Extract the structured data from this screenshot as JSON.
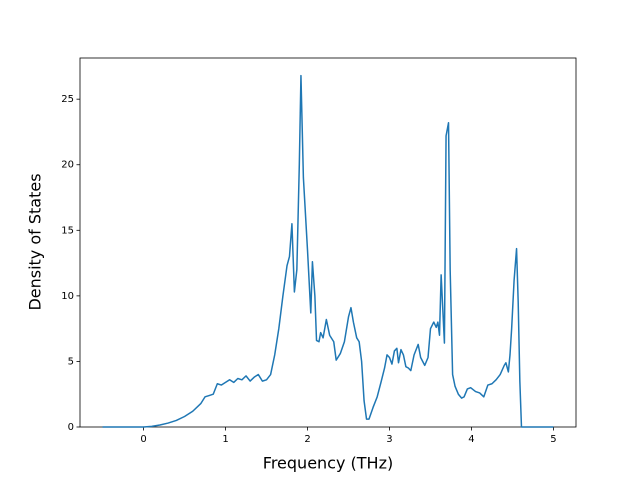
{
  "chart_data": {
    "type": "line",
    "xlabel": "Frequency (THz)",
    "ylabel": "Density of States",
    "xlim": [
      -0.775,
      5.275
    ],
    "ylim": [
      0,
      28.14
    ],
    "xticks": [
      0,
      1,
      2,
      3,
      4,
      5
    ],
    "yticks": [
      0,
      5,
      10,
      15,
      20,
      25
    ],
    "grid": false,
    "series": [
      {
        "color": "#1f77b4",
        "x": [
          -0.5,
          0,
          0.1,
          0.2,
          0.3,
          0.4,
          0.5,
          0.6,
          0.7,
          0.75,
          0.8,
          0.85,
          0.9,
          0.95,
          1.0,
          1.05,
          1.1,
          1.15,
          1.2,
          1.25,
          1.3,
          1.35,
          1.4,
          1.45,
          1.5,
          1.55,
          1.6,
          1.65,
          1.7,
          1.75,
          1.78,
          1.81,
          1.84,
          1.87,
          1.9,
          1.92,
          1.95,
          2.0,
          2.04,
          2.06,
          2.09,
          2.11,
          2.14,
          2.16,
          2.19,
          2.23,
          2.27,
          2.32,
          2.35,
          2.4,
          2.45,
          2.5,
          2.53,
          2.56,
          2.6,
          2.63,
          2.66,
          2.69,
          2.72,
          2.75,
          2.8,
          2.85,
          2.9,
          2.94,
          2.97,
          3.0,
          3.03,
          3.06,
          3.09,
          3.11,
          3.14,
          3.17,
          3.2,
          3.23,
          3.26,
          3.3,
          3.35,
          3.38,
          3.43,
          3.47,
          3.5,
          3.54,
          3.57,
          3.59,
          3.61,
          3.63,
          3.65,
          3.67,
          3.69,
          3.72,
          3.74,
          3.77,
          3.8,
          3.84,
          3.88,
          3.91,
          3.95,
          3.99,
          4.05,
          4.1,
          4.15,
          4.2,
          4.25,
          4.3,
          4.35,
          4.4,
          4.42,
          4.45,
          4.47,
          4.49,
          4.52,
          4.55,
          4.57,
          4.59,
          4.61,
          4.65,
          5.0
        ],
        "values": [
          0,
          0,
          0.05,
          0.15,
          0.3,
          0.5,
          0.8,
          1.2,
          1.8,
          2.3,
          2.4,
          2.5,
          3.3,
          3.2,
          3.4,
          3.6,
          3.4,
          3.7,
          3.6,
          3.9,
          3.5,
          3.8,
          4.0,
          3.5,
          3.6,
          4.0,
          5.5,
          7.5,
          10,
          12.3,
          13,
          15.5,
          10.3,
          12,
          20,
          26.8,
          19,
          13.5,
          8.7,
          12.6,
          10,
          6.6,
          6.5,
          7.2,
          6.8,
          8.2,
          7.0,
          6.5,
          5.1,
          5.6,
          6.5,
          8.4,
          9.1,
          8.0,
          6.8,
          6.5,
          5.0,
          2.0,
          0.6,
          0.6,
          1.5,
          2.3,
          3.5,
          4.5,
          5.5,
          5.3,
          4.8,
          5.8,
          6.0,
          4.9,
          5.9,
          5.5,
          4.6,
          4.5,
          4.3,
          5.5,
          6.3,
          5.3,
          4.7,
          5.3,
          7.5,
          8.0,
          7.6,
          8.0,
          7.0,
          11.6,
          9.0,
          6.4,
          22.2,
          23.2,
          12,
          4.0,
          3.1,
          2.5,
          2.2,
          2.3,
          2.9,
          3.0,
          2.7,
          2.6,
          2.3,
          3.2,
          3.3,
          3.6,
          4.0,
          4.7,
          4.9,
          4.2,
          5.5,
          7.5,
          11.2,
          13.6,
          9.5,
          3.5,
          0,
          0,
          0
        ]
      }
    ]
  }
}
